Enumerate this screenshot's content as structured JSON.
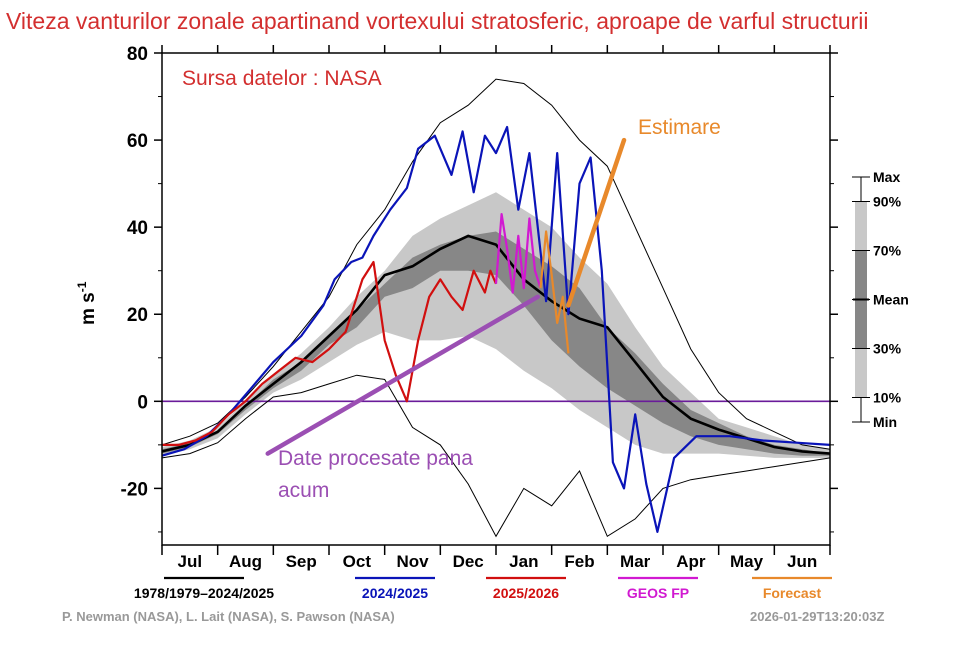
{
  "title": "Viteza vanturilor zonale apartinand vortexului stratosferic, aproape de varful structurii",
  "source_label": "Sursa datelor : NASA",
  "credits": "P. Newman (NASA), L. Lait (NASA), S. Pawson (NASA)",
  "timestamp": "2026-01-29T13:20:03Z",
  "colors": {
    "title": "#d32f2f",
    "mean": "#000000",
    "season_2024": "#0a14b8",
    "season_2025": "#d10f0f",
    "geos": "#d119d1",
    "forecast": "#e8892b",
    "zero_line": "#6a1b9a",
    "annot_purple": "#9b4fb3",
    "annot_orange": "#e8892b",
    "band_outer": "#c8c8c8",
    "band_inner": "#878787"
  },
  "annotations": {
    "estimate": "Estimare",
    "processed_line1": "Date procesate pana",
    "processed_line2": "acum"
  },
  "chart_data": {
    "type": "line",
    "title": "Viteza vanturilor zonale apartinand vortexului stratosferic, aproape de varful structurii",
    "ylabel": "m s-1",
    "ylabel_base": "m s",
    "ylabel_exp": "-1",
    "xlabel": "",
    "ylim": [
      -33,
      80
    ],
    "yticks": [
      -20,
      0,
      20,
      40,
      60,
      80
    ],
    "ytick_labels": [
      "-20",
      "0",
      "20",
      "40",
      "60",
      "80"
    ],
    "months": [
      "Jul",
      "Aug",
      "Sep",
      "Oct",
      "Nov",
      "Dec",
      "Jan",
      "Feb",
      "Mar",
      "Apr",
      "May",
      "Jun"
    ],
    "x_unit": "month index (0 = 1 Jul, 12 = 30 Jun)",
    "zero_line": 0,
    "percentile_legend": [
      "Max",
      "90%",
      "70%",
      "Mean",
      "30%",
      "10%",
      "Min"
    ],
    "series_legend": [
      {
        "label": "1978/1979–2024/2025",
        "color": "#000000"
      },
      {
        "label": "2024/2025",
        "color": "#0a14b8"
      },
      {
        "label": "2025/2026",
        "color": "#d10f0f"
      },
      {
        "label": "GEOS FP",
        "color": "#d119d1"
      },
      {
        "label": "Forecast",
        "color": "#e8892b"
      }
    ],
    "climatology": {
      "x": [
        0,
        0.5,
        1,
        1.5,
        2,
        2.5,
        3,
        3.5,
        4,
        4.5,
        5,
        5.5,
        6,
        6.5,
        7,
        7.5,
        8,
        8.5,
        9,
        9.5,
        10,
        10.5,
        11,
        11.5,
        12
      ],
      "max": [
        -10,
        -8,
        -5,
        1,
        8,
        16,
        24,
        36,
        44,
        55,
        64,
        68,
        74,
        73,
        68,
        60,
        54,
        40,
        26,
        12,
        2,
        -4,
        -7,
        -10,
        -11
      ],
      "p90": [
        -10.5,
        -9,
        -6,
        0,
        6,
        11,
        17,
        24,
        30,
        38,
        42,
        45,
        48,
        44,
        40,
        33,
        27,
        17,
        8,
        2,
        -4,
        -6,
        -8,
        -10,
        -11
      ],
      "p70": [
        -11,
        -9.5,
        -7,
        -1,
        5,
        9,
        15,
        21,
        27,
        33,
        36,
        38,
        39,
        35,
        31,
        26,
        17,
        11,
        4,
        -2,
        -5,
        -8,
        -10,
        -11,
        -12
      ],
      "mean": [
        -11.5,
        -10,
        -7,
        -1,
        4,
        9,
        15,
        21,
        29,
        31,
        35,
        38,
        36,
        28,
        23,
        19,
        17,
        9,
        1,
        -4,
        -6.5,
        -8.5,
        -10.5,
        -11.5,
        -12
      ],
      "p30": [
        -12,
        -10.5,
        -7.5,
        -2,
        3,
        7,
        13,
        17,
        24,
        26,
        30,
        30,
        29,
        22,
        14,
        8,
        3,
        -1,
        -5,
        -8,
        -10,
        -11,
        -12,
        -12.5,
        -12.5
      ],
      "p10": [
        -12.5,
        -11,
        -8.5,
        -3,
        2,
        5,
        9,
        13,
        16,
        14,
        14,
        15,
        12,
        7,
        3,
        -2,
        -6,
        -10,
        -12,
        -12,
        -12,
        -12.5,
        -13,
        -13,
        -13
      ],
      "min": [
        -13,
        -12,
        -9.5,
        -4,
        1,
        2,
        4,
        6,
        5,
        -6,
        -10,
        -19,
        -31,
        -20,
        -24,
        -16,
        -31,
        -27,
        -20,
        -18,
        -17,
        -16,
        -15,
        -14,
        -13
      ]
    },
    "series": [
      {
        "name": "2024/2025",
        "x": [
          0,
          0.4,
          0.8,
          1.2,
          1.6,
          2.0,
          2.5,
          2.9,
          3.1,
          3.4,
          3.6,
          3.8,
          4.1,
          4.4,
          4.6,
          4.9,
          5.2,
          5.4,
          5.6,
          5.8,
          6.0,
          6.2,
          6.4,
          6.6,
          6.9,
          7.1,
          7.3,
          7.5,
          7.7,
          7.9,
          8.1,
          8.3,
          8.5,
          8.7,
          8.9,
          9.2,
          9.6,
          10.2,
          10.8,
          11.4,
          12
        ],
        "values": [
          -12.5,
          -11,
          -8,
          -3,
          3,
          9,
          15,
          22,
          28,
          32,
          33,
          38,
          44,
          49,
          58,
          61,
          52,
          62,
          48,
          61,
          57,
          63,
          44,
          57,
          23,
          57,
          20,
          50,
          56,
          30,
          -14,
          -20,
          -3,
          -19,
          -30,
          -13,
          -8,
          -8,
          -9,
          -9.5,
          -10
        ]
      },
      {
        "name": "2025/2026",
        "x": [
          0,
          0.3,
          0.6,
          0.9,
          1.2,
          1.5,
          1.8,
          2.1,
          2.4,
          2.7,
          3.0,
          3.3,
          3.6,
          3.8,
          4.0,
          4.2,
          4.4,
          4.6,
          4.8,
          5.0,
          5.2,
          5.4,
          5.6,
          5.8,
          5.9,
          6.0
        ],
        "values": [
          -10,
          -10,
          -9,
          -7,
          -3,
          0,
          4,
          7,
          10,
          9,
          12,
          16,
          28,
          32,
          14,
          6,
          0,
          14,
          24,
          28,
          24,
          21,
          30,
          25,
          30,
          27
        ]
      },
      {
        "name": "GEOS FP",
        "x": [
          6.0,
          6.1,
          6.2,
          6.3,
          6.4,
          6.5,
          6.6,
          6.7,
          6.8
        ],
        "values": [
          27,
          43,
          35,
          25,
          38,
          26,
          42,
          30,
          26
        ]
      },
      {
        "name": "Forecast",
        "x": [
          6.8,
          6.9,
          7.0,
          7.1,
          7.2,
          7.3
        ],
        "values": [
          26,
          39,
          29,
          18,
          24,
          11
        ]
      }
    ]
  }
}
